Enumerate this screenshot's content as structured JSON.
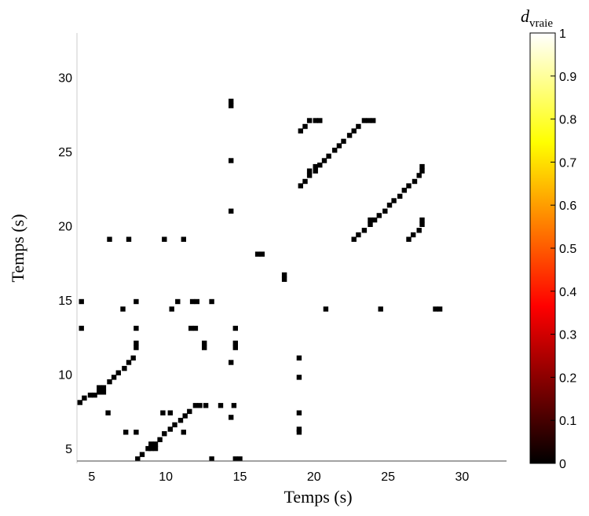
{
  "chart_data": {
    "type": "heatmap",
    "title": "",
    "xlabel": "Temps (s)",
    "ylabel": "Temps (s)",
    "xlim": [
      4.0,
      33.0
    ],
    "ylim": [
      4.0,
      33.0
    ],
    "xticks": [
      "5",
      "10",
      "15",
      "20",
      "25",
      "30"
    ],
    "yticks": [
      "5",
      "10",
      "15",
      "20",
      "25",
      "30"
    ],
    "cell_size_s": 0.34,
    "colorbar": {
      "label_main": "d",
      "label_sub": "vraie",
      "range": [
        0,
        1
      ],
      "ticks": [
        "0",
        "0.1",
        "0.2",
        "0.3",
        "0.4",
        "0.5",
        "0.6",
        "0.7",
        "0.8",
        "0.9",
        "1"
      ],
      "colormap": "hot",
      "colors": [
        "#000000",
        "#ff0000",
        "#ffff00",
        "#ffffff"
      ]
    },
    "background_value": 1,
    "cells_value": 0,
    "dark_cells_xy": [
      [
        8.1,
        4.3
      ],
      [
        8.4,
        4.6
      ],
      [
        8.8,
        5.0
      ],
      [
        9.0,
        5.3
      ],
      [
        9.3,
        5.3
      ],
      [
        9.0,
        5.0
      ],
      [
        9.3,
        5.0
      ],
      [
        9.6,
        5.6
      ],
      [
        9.9,
        6.0
      ],
      [
        10.3,
        6.3
      ],
      [
        10.6,
        6.6
      ],
      [
        11.0,
        6.9
      ],
      [
        11.3,
        7.2
      ],
      [
        11.6,
        7.5
      ],
      [
        12.0,
        7.9
      ],
      [
        12.3,
        7.9
      ],
      [
        12.7,
        7.9
      ],
      [
        13.7,
        7.9
      ],
      [
        14.6,
        7.9
      ],
      [
        5.5,
        8.8
      ],
      [
        5.8,
        8.8
      ],
      [
        5.5,
        9.1
      ],
      [
        5.8,
        9.1
      ],
      [
        6.2,
        9.5
      ],
      [
        6.5,
        9.8
      ],
      [
        6.8,
        10.1
      ],
      [
        7.2,
        10.4
      ],
      [
        7.5,
        10.8
      ],
      [
        7.8,
        11.1
      ],
      [
        4.2,
        8.1
      ],
      [
        4.5,
        8.4
      ],
      [
        4.9,
        8.6
      ],
      [
        5.2,
        8.6
      ],
      [
        6.1,
        7.4
      ],
      [
        9.8,
        7.4
      ],
      [
        10.3,
        7.4
      ],
      [
        7.3,
        6.1
      ],
      [
        8.0,
        6.1
      ],
      [
        11.2,
        6.1
      ],
      [
        14.4,
        7.1
      ],
      [
        19.0,
        7.4
      ],
      [
        19.0,
        6.1
      ],
      [
        19.0,
        6.3
      ],
      [
        19.0,
        9.8
      ],
      [
        19.0,
        11.1
      ],
      [
        14.4,
        10.8
      ],
      [
        8.0,
        11.8
      ],
      [
        8.0,
        12.1
      ],
      [
        12.6,
        11.8
      ],
      [
        12.6,
        12.1
      ],
      [
        14.7,
        11.8
      ],
      [
        14.7,
        12.1
      ],
      [
        4.3,
        13.1
      ],
      [
        8.0,
        13.1
      ],
      [
        11.7,
        13.1
      ],
      [
        12.0,
        13.1
      ],
      [
        14.7,
        13.1
      ],
      [
        4.3,
        14.9
      ],
      [
        8.0,
        14.9
      ],
      [
        10.8,
        14.9
      ],
      [
        11.8,
        14.9
      ],
      [
        12.1,
        14.9
      ],
      [
        13.1,
        14.9
      ],
      [
        7.1,
        14.4
      ],
      [
        10.4,
        14.4
      ],
      [
        20.8,
        14.4
      ],
      [
        24.5,
        14.4
      ],
      [
        28.2,
        14.4
      ],
      [
        28.5,
        14.4
      ],
      [
        18.0,
        16.4
      ],
      [
        18.0,
        16.7
      ],
      [
        16.2,
        18.1
      ],
      [
        16.5,
        18.1
      ],
      [
        6.2,
        19.1
      ],
      [
        7.5,
        19.1
      ],
      [
        9.9,
        19.1
      ],
      [
        11.2,
        19.1
      ],
      [
        14.4,
        21.0
      ],
      [
        22.7,
        19.1
      ],
      [
        23.0,
        19.4
      ],
      [
        23.4,
        19.7
      ],
      [
        23.8,
        20.1
      ],
      [
        24.1,
        20.4
      ],
      [
        23.8,
        20.4
      ],
      [
        24.4,
        20.7
      ],
      [
        24.8,
        21.0
      ],
      [
        25.1,
        21.4
      ],
      [
        25.4,
        21.7
      ],
      [
        25.8,
        22.0
      ],
      [
        26.1,
        22.4
      ],
      [
        26.4,
        22.7
      ],
      [
        26.8,
        23.0
      ],
      [
        27.1,
        23.4
      ],
      [
        27.3,
        23.7
      ],
      [
        27.3,
        24.0
      ],
      [
        26.4,
        19.1
      ],
      [
        26.7,
        19.4
      ],
      [
        27.1,
        19.7
      ],
      [
        27.3,
        20.1
      ],
      [
        27.3,
        20.4
      ],
      [
        19.1,
        22.7
      ],
      [
        19.4,
        23.0
      ],
      [
        19.7,
        23.4
      ],
      [
        20.1,
        23.7
      ],
      [
        19.7,
        23.7
      ],
      [
        20.1,
        24.0
      ],
      [
        20.4,
        24.1
      ],
      [
        20.7,
        24.4
      ],
      [
        21.0,
        24.7
      ],
      [
        21.4,
        25.1
      ],
      [
        21.7,
        25.4
      ],
      [
        22.0,
        25.7
      ],
      [
        22.4,
        26.1
      ],
      [
        22.7,
        26.4
      ],
      [
        23.0,
        26.7
      ],
      [
        23.4,
        27.1
      ],
      [
        23.7,
        27.1
      ],
      [
        24.0,
        27.1
      ],
      [
        19.1,
        26.4
      ],
      [
        19.4,
        26.7
      ],
      [
        19.7,
        27.1
      ],
      [
        20.1,
        27.1
      ],
      [
        20.4,
        27.1
      ],
      [
        14.4,
        24.4
      ],
      [
        14.4,
        28.1
      ],
      [
        14.4,
        28.4
      ],
      [
        13.1,
        4.3
      ],
      [
        14.7,
        4.3
      ],
      [
        15.0,
        4.3
      ]
    ]
  }
}
